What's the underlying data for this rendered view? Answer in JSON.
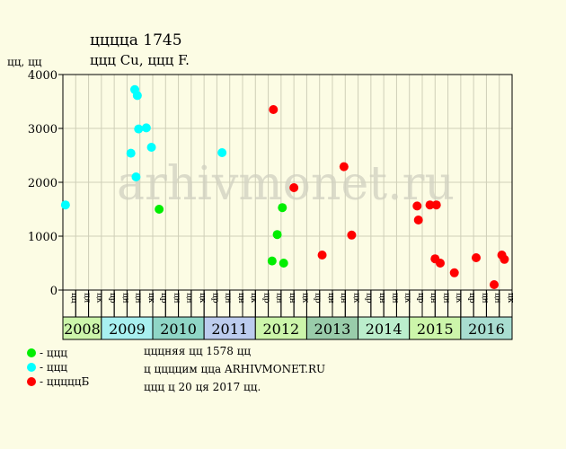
{
  "header": {
    "title": "цццца 1745",
    "subtitle": "ццц Cu, ццц F.",
    "y_unit": "цц, цц"
  },
  "watermark": "arhivmonet.ru",
  "legend": [
    {
      "label": "- ццц",
      "color": "#00ee00"
    },
    {
      "label": "- ццц",
      "color": "#00ffff"
    },
    {
      "label": "- цццццБ",
      "color": "#ff0000"
    }
  ],
  "info": [
    "цццняя цц 1578 цц",
    "ц ццццим цца ARHIVMONET.RU",
    "ццц ц 20 ця 2017 цц."
  ],
  "chart_data": {
    "type": "scatter",
    "ylim": [
      0,
      4000
    ],
    "yticks": [
      0,
      1000,
      2000,
      3000,
      4000
    ],
    "years": [
      {
        "label": "2008",
        "color": "#ccf5aa",
        "months": [
          "цц",
          "ця",
          "цк"
        ]
      },
      {
        "label": "2009",
        "color": "#a8f0f0",
        "months": [
          "цр",
          "цн",
          "цн",
          "цк"
        ]
      },
      {
        "label": "2010",
        "color": "#8fd6c6",
        "months": [
          "цр",
          "цн",
          "цн",
          "цк"
        ]
      },
      {
        "label": "2011",
        "color": "#bcccee",
        "months": [
          "цр",
          "цн",
          "цн",
          "цк"
        ]
      },
      {
        "label": "2012",
        "color": "#ccf5aa",
        "months": [
          "цр",
          "цн",
          "цн",
          "цк"
        ]
      },
      {
        "label": "2013",
        "color": "#99ccaa",
        "months": [
          "цр",
          "цн",
          "цн",
          "цк"
        ]
      },
      {
        "label": "2014",
        "color": "#bbeecc",
        "months": [
          "цр",
          "цн",
          "цн",
          "цк"
        ]
      },
      {
        "label": "2015",
        "color": "#ccf5aa",
        "months": [
          "цр",
          "цн",
          "цн",
          "цк"
        ]
      },
      {
        "label": "2016",
        "color": "#a8ddd0",
        "months": [
          "цр",
          "цн",
          "цн",
          "цк"
        ]
      }
    ],
    "series": [
      {
        "color": "#00ee00",
        "points": [
          {
            "x": 7.5,
            "y": 1500
          },
          {
            "x": 16.3,
            "y": 540
          },
          {
            "x": 16.7,
            "y": 1030
          },
          {
            "x": 17.1,
            "y": 1530
          },
          {
            "x": 17.2,
            "y": 500
          }
        ]
      },
      {
        "color": "#00ffff",
        "points": [
          {
            "x": 0.2,
            "y": 1580
          },
          {
            "x": 5.3,
            "y": 2540
          },
          {
            "x": 5.6,
            "y": 3720
          },
          {
            "x": 5.7,
            "y": 2100
          },
          {
            "x": 5.8,
            "y": 3610
          },
          {
            "x": 5.9,
            "y": 2990
          },
          {
            "x": 6.5,
            "y": 3010
          },
          {
            "x": 6.9,
            "y": 2650
          },
          {
            "x": 12.4,
            "y": 2550
          }
        ]
      },
      {
        "color": "#ff0000",
        "points": [
          {
            "x": 16.4,
            "y": 3350
          },
          {
            "x": 18.0,
            "y": 1900
          },
          {
            "x": 20.2,
            "y": 650
          },
          {
            "x": 21.9,
            "y": 2290
          },
          {
            "x": 22.5,
            "y": 1020
          },
          {
            "x": 27.6,
            "y": 1560
          },
          {
            "x": 27.7,
            "y": 1300
          },
          {
            "x": 28.6,
            "y": 1580
          },
          {
            "x": 29.0,
            "y": 580
          },
          {
            "x": 29.1,
            "y": 1580
          },
          {
            "x": 29.4,
            "y": 500
          },
          {
            "x": 30.5,
            "y": 320
          },
          {
            "x": 32.2,
            "y": 600
          },
          {
            "x": 33.6,
            "y": 100
          },
          {
            "x": 34.2,
            "y": 650
          },
          {
            "x": 34.4,
            "y": 570
          }
        ]
      }
    ]
  }
}
